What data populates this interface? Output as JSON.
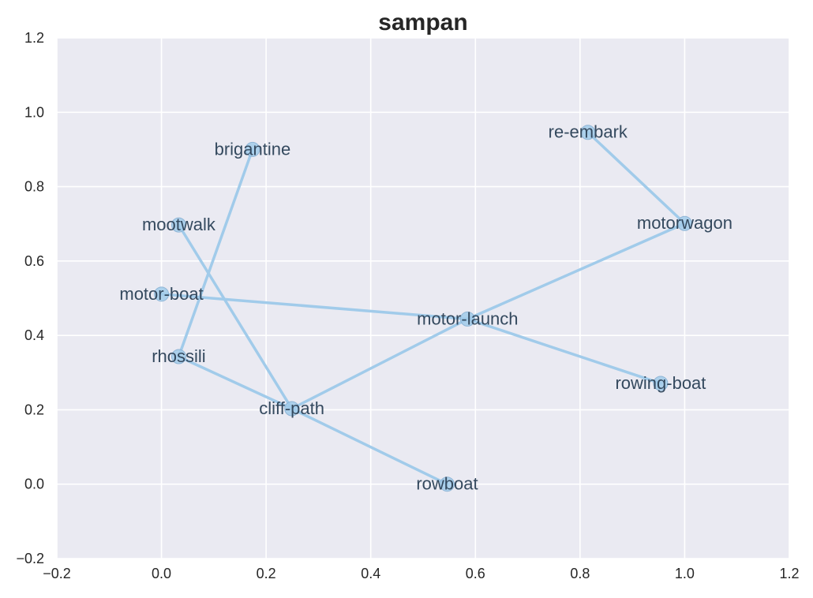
{
  "chart_data": {
    "type": "network",
    "title": "sampan",
    "xlim": [
      -0.2,
      1.2
    ],
    "ylim": [
      -0.2,
      1.2
    ],
    "xticks": [
      "−0.2",
      "0.0",
      "0.2",
      "0.4",
      "0.6",
      "0.8",
      "1.0",
      "1.2"
    ],
    "yticks": [
      "−0.2",
      "0.0",
      "0.2",
      "0.4",
      "0.6",
      "0.8",
      "1.0",
      "1.2"
    ],
    "grid": true,
    "colors": {
      "background": "#eaeaf2",
      "grid": "#ffffff",
      "edge": "#a1cbea",
      "node_fill": "#a1cbea",
      "label": "#34495e"
    },
    "nodes": [
      {
        "label": "brigantine",
        "x": 0.174,
        "y": 0.9
      },
      {
        "label": "re-embark",
        "x": 0.815,
        "y": 0.946
      },
      {
        "label": "mootwalk",
        "x": 0.033,
        "y": 0.697
      },
      {
        "label": "motorwagon",
        "x": 1.0,
        "y": 0.701
      },
      {
        "label": "motor-boat",
        "x": 0.0,
        "y": 0.511
      },
      {
        "label": "motor-launch",
        "x": 0.585,
        "y": 0.444
      },
      {
        "label": "rhossili",
        "x": 0.033,
        "y": 0.343
      },
      {
        "label": "rowing-boat",
        "x": 0.954,
        "y": 0.271
      },
      {
        "label": "cliff-path",
        "x": 0.249,
        "y": 0.203
      },
      {
        "label": "rowboat",
        "x": 0.546,
        "y": 0.0
      }
    ],
    "edges": [
      [
        "brigantine",
        "rhossili"
      ],
      [
        "re-embark",
        "motorwagon"
      ],
      [
        "mootwalk",
        "cliff-path"
      ],
      [
        "motorwagon",
        "motor-launch"
      ],
      [
        "motor-launch",
        "cliff-path"
      ],
      [
        "motor-boat",
        "motor-launch"
      ],
      [
        "motor-launch",
        "rowing-boat"
      ],
      [
        "rhossili",
        "cliff-path"
      ],
      [
        "cliff-path",
        "rowboat"
      ]
    ]
  }
}
